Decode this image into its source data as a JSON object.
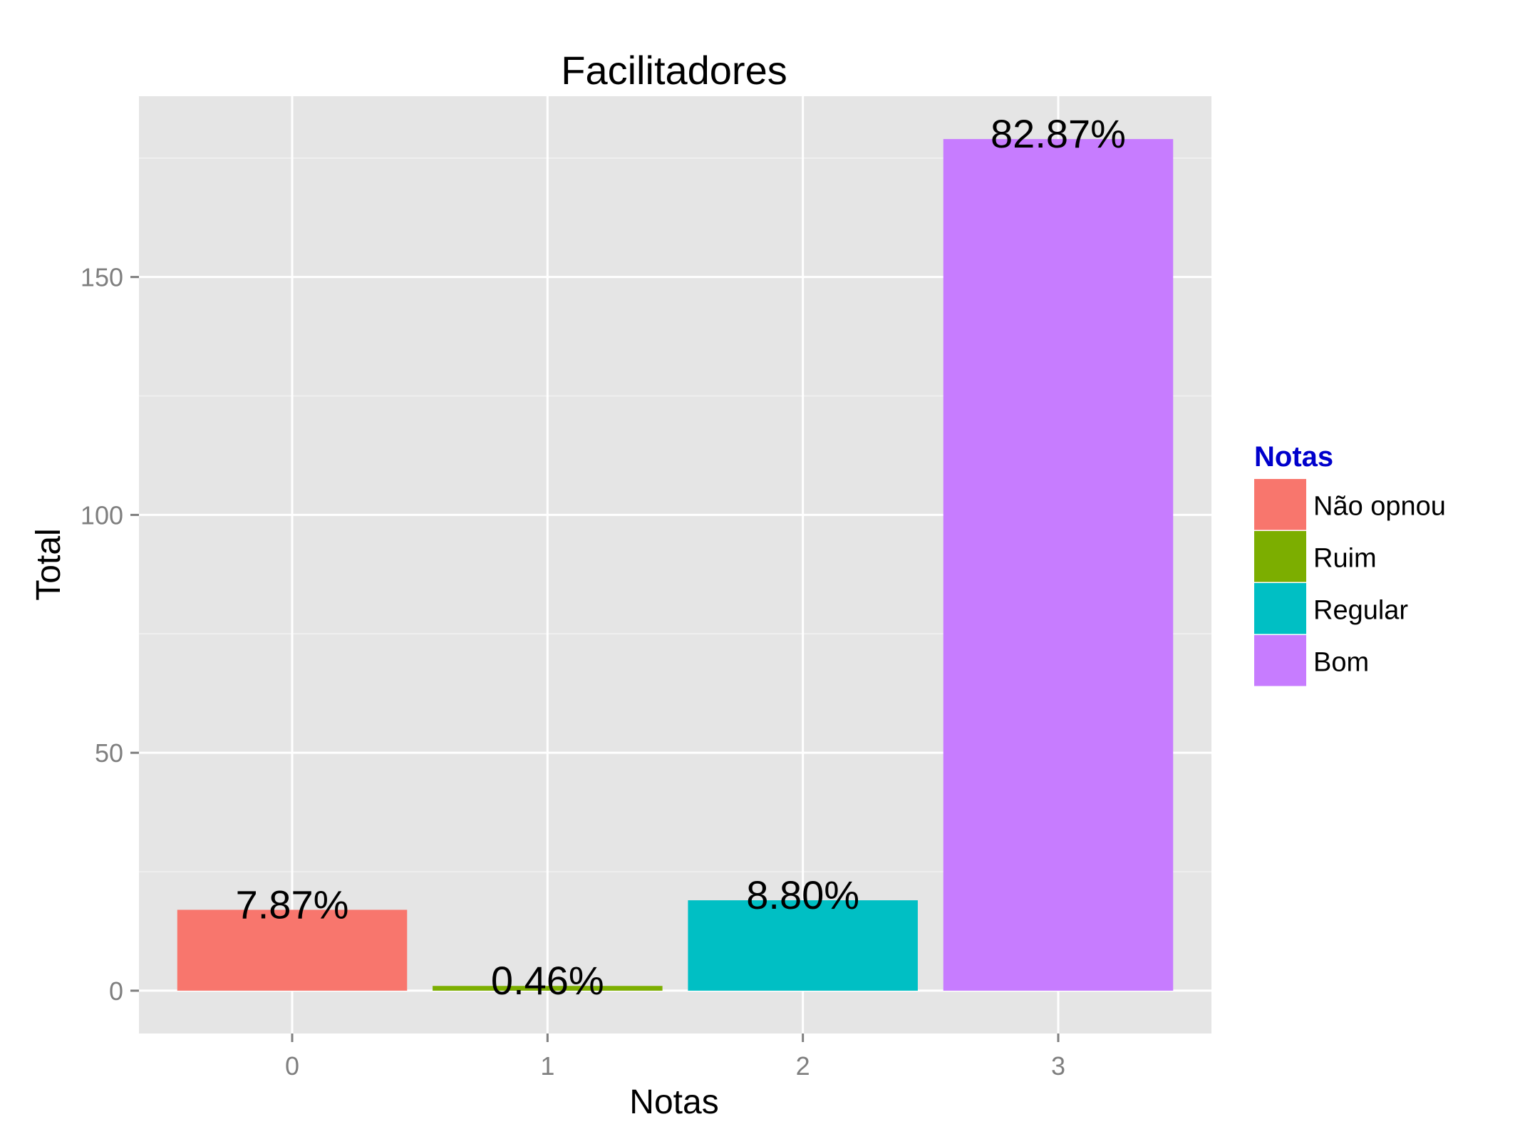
{
  "chart_data": {
    "type": "bar",
    "title": "Facilitadores",
    "xlabel": "Notas",
    "ylabel": "Total",
    "categories": [
      "0",
      "1",
      "2",
      "3"
    ],
    "values": [
      17,
      1,
      19,
      179
    ],
    "bar_labels": [
      "7.87%",
      "0.46%",
      "8.80%",
      "82.87%"
    ],
    "bar_colors": [
      "#F8766D",
      "#7CAE00",
      "#00BFC4",
      "#C77CFF"
    ],
    "yticks": [
      0,
      50,
      100,
      150
    ],
    "ylim": [
      -9,
      188
    ],
    "grid": true,
    "legend": {
      "title": "Notas",
      "title_color": "#0000CC",
      "position": "right",
      "entries": [
        {
          "label": "Não opnou",
          "color": "#F8766D"
        },
        {
          "label": "Ruim",
          "color": "#7CAE00"
        },
        {
          "label": "Regular",
          "color": "#00BFC4"
        },
        {
          "label": "Bom",
          "color": "#C77CFF"
        }
      ]
    }
  }
}
